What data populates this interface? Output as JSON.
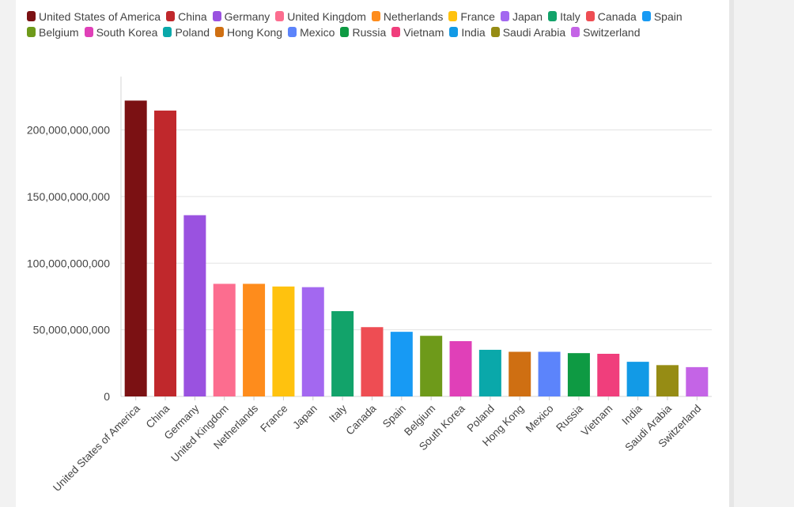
{
  "chart_data": {
    "type": "bar",
    "categories": [
      "United States of America",
      "China",
      "Germany",
      "United Kingdom",
      "Netherlands",
      "France",
      "Japan",
      "Italy",
      "Canada",
      "Spain",
      "Belgium",
      "South Korea",
      "Poland",
      "Hong Kong",
      "Mexico",
      "Russia",
      "Vietnam",
      "India",
      "Saudi Arabia",
      "Switzerland"
    ],
    "values": [
      222000000000,
      214500000000,
      136000000000,
      84500000000,
      84500000000,
      82500000000,
      82000000000,
      64000000000,
      52000000000,
      48500000000,
      45500000000,
      41500000000,
      35000000000,
      33500000000,
      33500000000,
      32500000000,
      32000000000,
      26000000000,
      23500000000,
      22000000000
    ],
    "colors": [
      "#7b1113",
      "#c0282c",
      "#9a52e0",
      "#fc6d8f",
      "#fe8c1c",
      "#ffc20e",
      "#a368f0",
      "#12a36a",
      "#ee4d53",
      "#179af4",
      "#6e9a1a",
      "#e040b8",
      "#0aa8aa",
      "#cf6f12",
      "#5c84fb",
      "#0e9a43",
      "#f03e7c",
      "#129ae6",
      "#968c14",
      "#c464e6"
    ],
    "ylim": [
      0,
      240000000000
    ],
    "yticks": [
      0,
      50000000000,
      100000000000,
      150000000000,
      200000000000
    ],
    "ytick_labels": [
      "0",
      "50,000,000,000",
      "100,000,000,000",
      "150,000,000,000",
      "200,000,000,000"
    ],
    "title": "",
    "xlabel": "",
    "ylabel": "",
    "grid": true,
    "legend_position": "top"
  }
}
